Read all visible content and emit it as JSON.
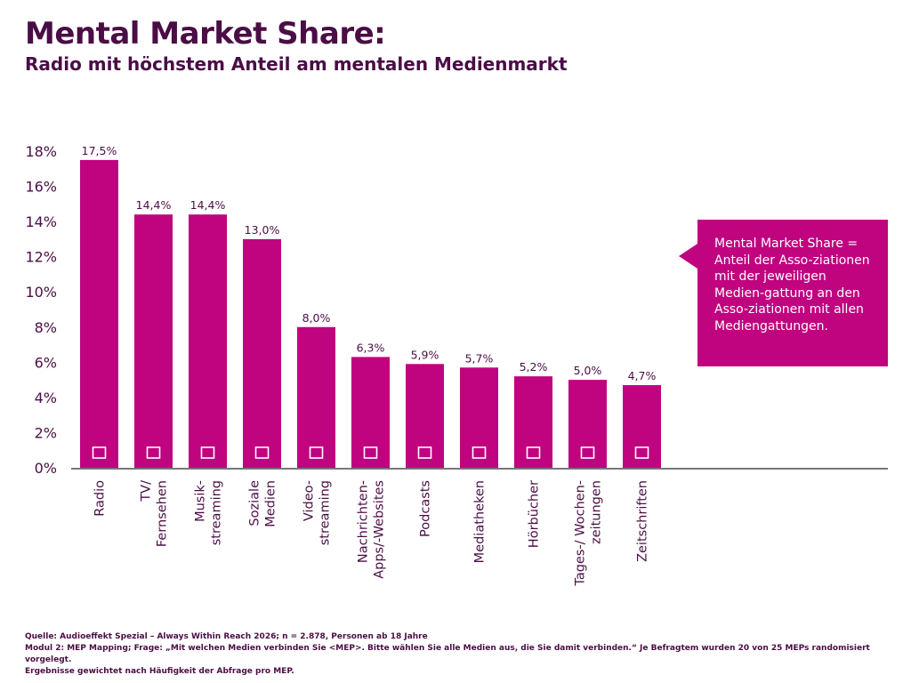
{
  "title": "Mental Market Share:",
  "subtitle": "Radio mit höchstem Anteil am mentalen Medienmarkt",
  "callout": "Mental Market Share = Anteil der Asso-ziationen mit der jeweiligen Medien-gattung an den Asso-ziationen mit allen Mediengattungen.",
  "colors": {
    "bar": "#c0037f",
    "text": "#4a0d45",
    "axis": "#777777"
  },
  "chart_data": {
    "type": "bar",
    "title": "Mental Market Share",
    "categories": [
      "Radio",
      "TV/ Fernsehen",
      "Musik-streaming",
      "Soziale Medien",
      "Video-streaming",
      "Nachrichten-Apps/-Websites",
      "Podcasts",
      "Mediatheken",
      "Hörbücher",
      "Tages-/ Wochen-zeitungen",
      "Zeitschriften"
    ],
    "category_lines": [
      [
        "Radio"
      ],
      [
        "TV/",
        "Fernsehen"
      ],
      [
        "Musik-",
        "streaming"
      ],
      [
        "Soziale",
        "Medien"
      ],
      [
        "Video-",
        "streaming"
      ],
      [
        "Nachrichten-",
        "Apps/-Websites"
      ],
      [
        "Podcasts"
      ],
      [
        "Mediatheken"
      ],
      [
        "Hörbücher"
      ],
      [
        "Tages-/ Wochen-",
        "zeitungen"
      ],
      [
        "Zeitschriften"
      ]
    ],
    "values": [
      17.5,
      14.4,
      14.4,
      13.0,
      8.0,
      6.3,
      5.9,
      5.7,
      5.2,
      5.0,
      4.7
    ],
    "value_labels": [
      "17,5%",
      "14,4%",
      "14,4%",
      "13,0%",
      "8,0%",
      "6,3%",
      "5,9%",
      "5,7%",
      "5,2%",
      "5,0%",
      "4,7%"
    ],
    "icons": [
      "radio-icon",
      "tv-icon",
      "soundwave-icon",
      "network-icon",
      "clapperboard-icon",
      "smartphone-icon",
      "microphone-icon",
      "remote-icon",
      "speaker-icon",
      "newspaper-icon",
      "book-icon"
    ],
    "yticks": [
      0,
      2,
      4,
      6,
      8,
      10,
      12,
      14,
      16,
      18
    ],
    "ytick_labels": [
      "0%",
      "2%",
      "4%",
      "6%",
      "8%",
      "10%",
      "12%",
      "14%",
      "16%",
      "18%"
    ],
    "ylim": [
      0,
      18
    ],
    "xlabel": "",
    "ylabel": "",
    "grid": false
  },
  "footer": [
    "Quelle: Audioeffekt Spezial – Always Within Reach 2026; n = 2.878, Personen ab 18 Jahre",
    "Modul 2: MEP Mapping; Frage: „Mit welchen Medien verbinden Sie <MEP>. Bitte wählen Sie alle Medien aus, die Sie damit verbinden.“ Je Befragtem wurden 20 von 25 MEPs randomisiert vorgelegt.",
    "Ergebnisse gewichtet nach Häufigkeit der Abfrage pro MEP."
  ]
}
